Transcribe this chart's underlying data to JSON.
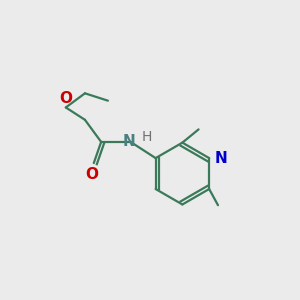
{
  "bg_color": "#ebebeb",
  "bond_color": "#3a7a5a",
  "O_color": "#cc0000",
  "N_color": "#0000cc",
  "NH_color": "#4a8080",
  "H_color": "#707070",
  "line_width": 1.6,
  "font_size": 11,
  "fig_size": [
    3.0,
    3.0
  ],
  "dpi": 100,
  "xlim": [
    0,
    10
  ],
  "ylim": [
    0,
    10
  ]
}
